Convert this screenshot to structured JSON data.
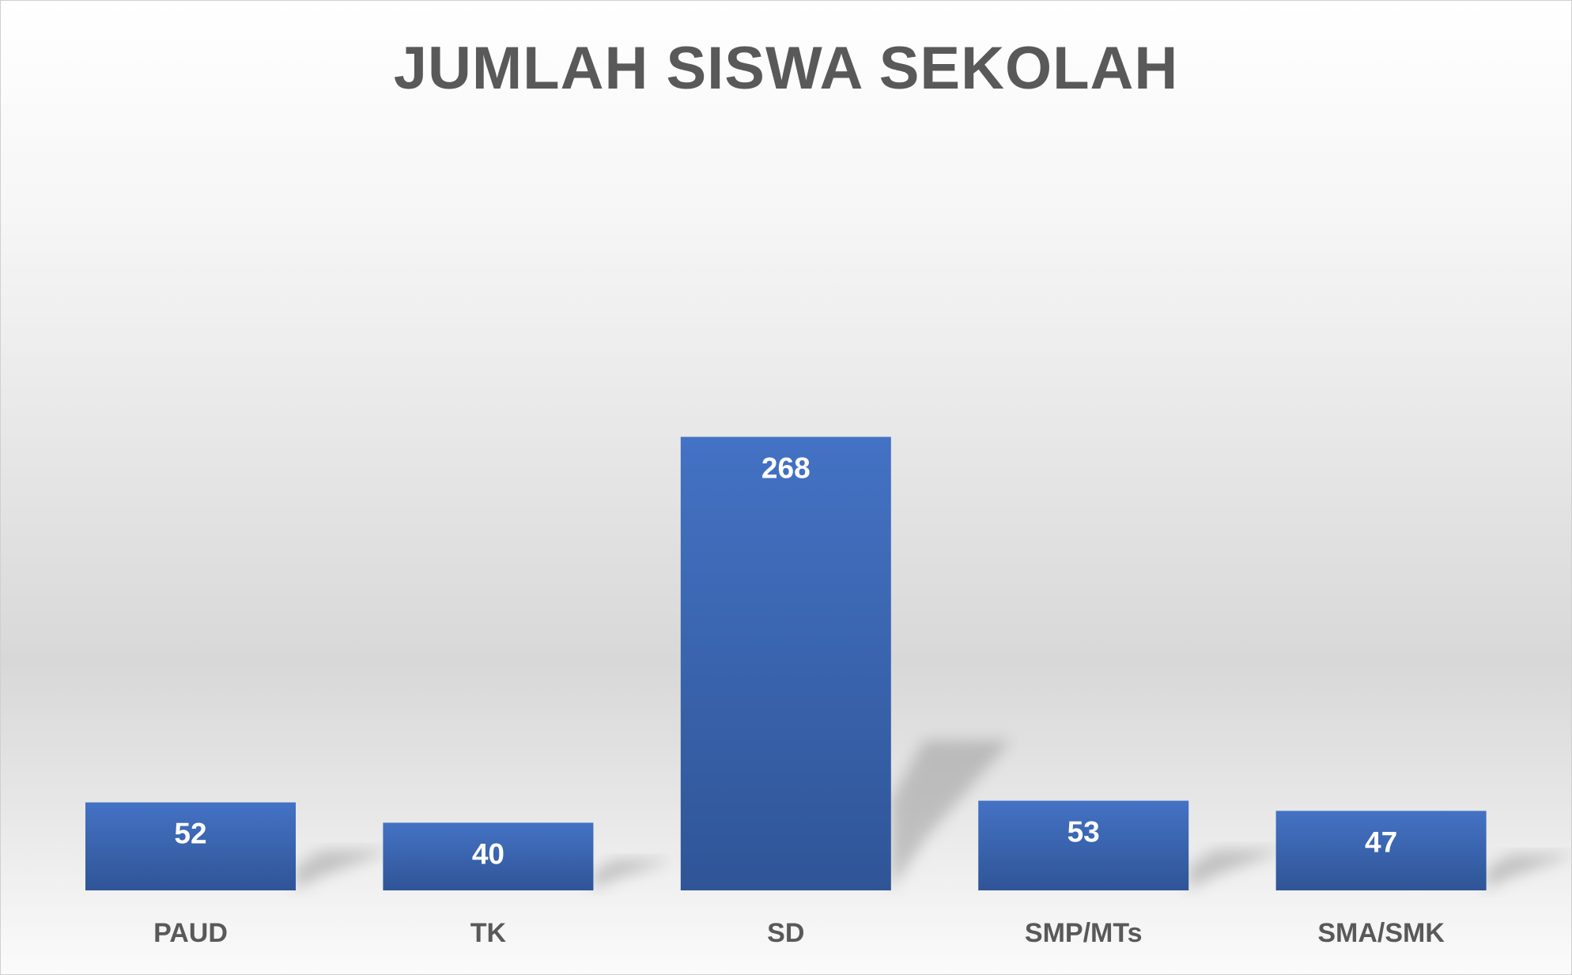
{
  "chart_data": {
    "type": "bar",
    "title": "JUMLAH SISWA SEKOLAH",
    "categories": [
      "PAUD",
      "TK",
      "SD",
      "SMP/MTs",
      "SMA/SMK"
    ],
    "values": [
      52,
      40,
      268,
      53,
      47
    ],
    "xlabel": "",
    "ylabel": "",
    "ylim": [
      0,
      300
    ],
    "grid": false,
    "legend": "none",
    "bar_color": "#4472C4",
    "bar_color_dark": "#2F5597",
    "data_label_color": "#FFFFFF",
    "text_color": "#595959"
  }
}
